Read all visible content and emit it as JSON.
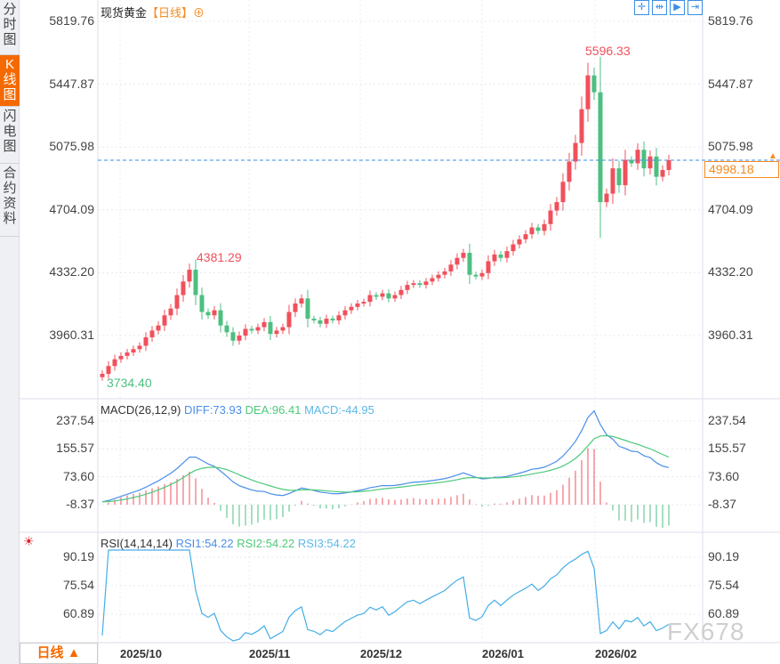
{
  "sidebar": {
    "tabs": [
      {
        "label": "分时图"
      },
      {
        "label": "K线图",
        "active": true
      },
      {
        "label": "闪电图"
      },
      {
        "label": "合约资料"
      }
    ]
  },
  "header": {
    "title": "现货黄金",
    "period": "【日线】",
    "add_icon": "circle-plus-icon",
    "tools": [
      "crosshair-icon",
      "zoom-fit-icon",
      "play-icon",
      "exit-icon"
    ]
  },
  "colors": {
    "up": "#f0505c",
    "down": "#4dbf80",
    "diff": "#4a8fe8",
    "dea": "#4dc97a",
    "macd": "#5bb8e8",
    "rsi": "#43aee6",
    "last": "#f58a1f"
  },
  "chart_data": {
    "type": "candlestick",
    "price_axis_ticks": [
      "5819.76",
      "5447.87",
      "5075.98",
      "4704.09",
      "4332.20",
      "3960.31"
    ],
    "ylim": [
      3960.31,
      5819.76
    ],
    "x_ticks": [
      "2025/10",
      "2025/11",
      "2025/12",
      "2026/01",
      "2026/02"
    ],
    "max_label": "5596.33",
    "min_label": "3734.40",
    "mid_high_label": "4381.29",
    "last_price": "4998.18",
    "close": [
      3734,
      3780,
      3820,
      3840,
      3860,
      3880,
      3900,
      3950,
      3990,
      4020,
      4080,
      4120,
      4200,
      4280,
      4350,
      4200,
      4100,
      4080,
      4110,
      4020,
      3980,
      3930,
      3960,
      4000,
      3990,
      4010,
      4040,
      3970,
      3990,
      4010,
      4100,
      4150,
      4180,
      4060,
      4050,
      4030,
      4060,
      4050,
      4080,
      4110,
      4130,
      4150,
      4160,
      4200,
      4190,
      4210,
      4180,
      4200,
      4230,
      4260,
      4270,
      4260,
      4280,
      4300,
      4320,
      4340,
      4380,
      4420,
      4450,
      4320,
      4310,
      4330,
      4400,
      4440,
      4420,
      4460,
      4500,
      4530,
      4560,
      4600,
      4580,
      4620,
      4700,
      4750,
      4870,
      4990,
      5100,
      5300,
      5500,
      5400,
      4750,
      4800,
      4950,
      4850,
      5000,
      4980,
      5060,
      4950,
      5020,
      4900,
      4940,
      4998
    ],
    "macd": {
      "label": "MACD(26,12,9)",
      "diff": "DIFF:73.93",
      "dea": "DEA:96.41",
      "macd": "MACD:-44.95",
      "ticks": [
        "237.54",
        "155.57",
        "73.60",
        "-8.37"
      ],
      "ylim": [
        -8.37,
        237.54
      ]
    },
    "rsi": {
      "label": "RSI(14,14,14)",
      "rsi1": "RSI1:54.22",
      "rsi2": "RSI2:54.22",
      "rsi3": "RSI3:54.22",
      "ticks": [
        "90.19",
        "75.54",
        "60.89"
      ],
      "ylim": [
        60.89,
        90.19
      ]
    }
  },
  "footer": {
    "period_tab": "日线 ▲"
  },
  "watermark": "FX678"
}
